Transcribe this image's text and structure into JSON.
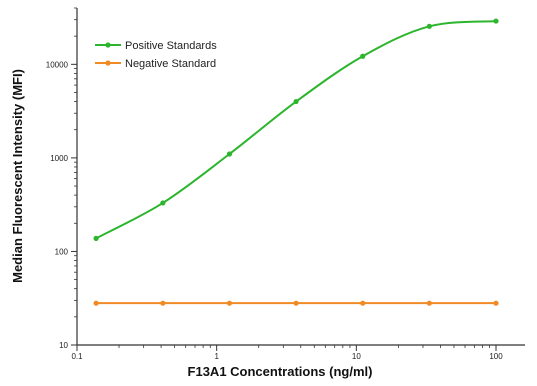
{
  "chart_data": {
    "type": "line",
    "title": "",
    "xlabel": "F13A1 Concentrations (ng/ml)",
    "ylabel": "Median  Fluorescent Intensity  (MFI)",
    "x_scale": "log",
    "y_scale": "log",
    "xlim": [
      0.1,
      100
    ],
    "ylim": [
      10,
      40000
    ],
    "x_ticks": [
      0.1,
      1,
      10,
      100
    ],
    "x_tick_labels": [
      "0.1",
      "1",
      "10",
      "100"
    ],
    "y_ticks": [
      10,
      100,
      1000,
      10000
    ],
    "y_tick_labels": [
      "10",
      "100",
      "1000",
      "10000"
    ],
    "grid": false,
    "legend_position": "top-left",
    "series": [
      {
        "name": "Positive Standards",
        "color": "#2db52d",
        "x": [
          0.137,
          0.412,
          1.235,
          3.704,
          11.11,
          33.33,
          100
        ],
        "y": [
          138,
          330,
          1100,
          4000,
          12200,
          25500,
          29000
        ]
      },
      {
        "name": "Negative Standard",
        "color": "#f08a24",
        "x": [
          0.137,
          0.412,
          1.235,
          3.704,
          11.11,
          33.33,
          100
        ],
        "y": [
          28,
          28,
          28,
          28,
          28,
          28,
          28
        ]
      }
    ]
  }
}
